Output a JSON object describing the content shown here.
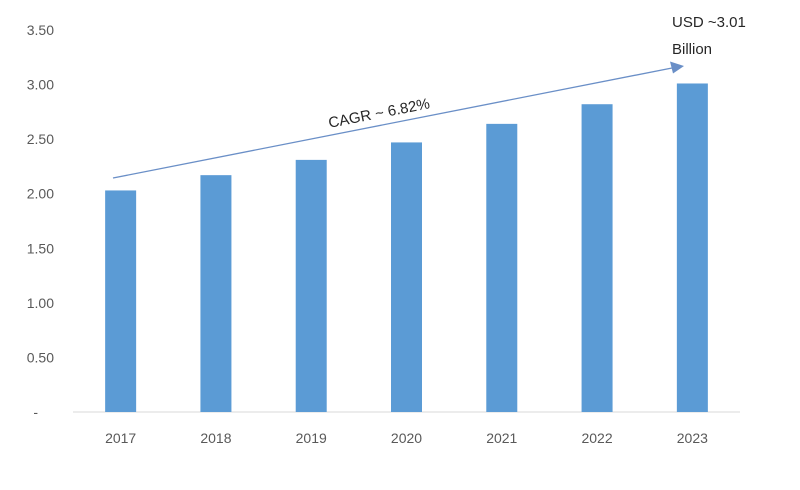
{
  "chart_data": {
    "type": "bar",
    "categories": [
      "2017",
      "2018",
      "2019",
      "2020",
      "2021",
      "2022",
      "2023"
    ],
    "values": [
      2.03,
      2.17,
      2.31,
      2.47,
      2.64,
      2.82,
      3.01
    ],
    "ylim": [
      0,
      3.5
    ],
    "y_ticks": [
      "-",
      "0.50",
      "1.00",
      "1.50",
      "2.00",
      "2.50",
      "3.00",
      "3.50"
    ],
    "grid": false,
    "bar_color": "#5b9bd5",
    "arrow_color": "#6a8fc7",
    "annotations": {
      "cagr": "CAGR ~ 6.82%",
      "final_value_line1": "USD ~3.01",
      "final_value_line2": "Billion"
    }
  }
}
